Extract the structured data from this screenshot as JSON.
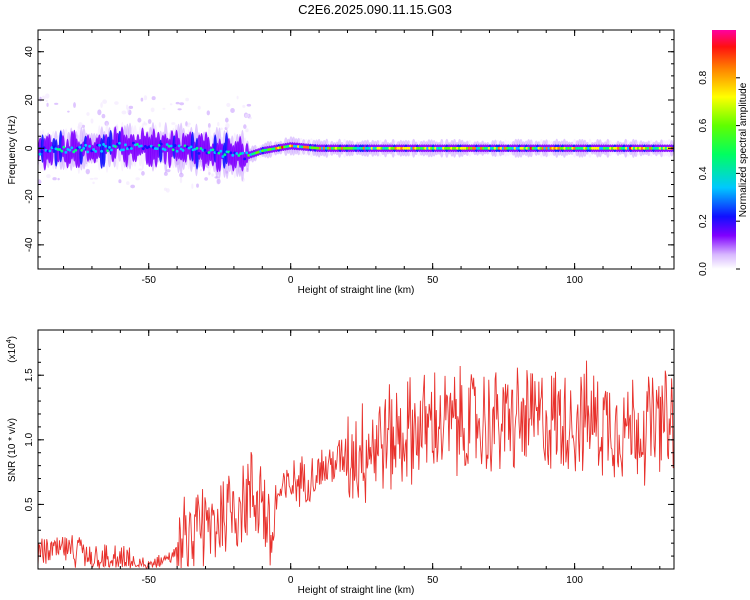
{
  "title": "C2E6.2025.090.11.15.G03",
  "chart_data": [
    {
      "type": "heatmap",
      "xlabel": "Height of straight line (km)",
      "ylabel": "Frequency (Hz)",
      "xlim": [
        -89,
        135
      ],
      "ylim": [
        -50,
        49
      ],
      "xticks": [
        -50,
        0,
        50,
        100
      ],
      "yticks": [
        -40,
        -20,
        0,
        20,
        40
      ],
      "ridge": {
        "x": [
          -89,
          -70,
          -55,
          -40,
          -30,
          -25,
          -20,
          -15,
          -10,
          -5,
          0,
          10,
          30,
          50,
          70,
          90,
          110,
          135
        ],
        "y": [
          -1,
          0,
          1,
          0,
          -1,
          -2,
          -3,
          -3,
          -1,
          0,
          1,
          0,
          0,
          0,
          0,
          0,
          0,
          0
        ]
      },
      "colorbar": {
        "label": "Normalized spectral amplitude",
        "ticks": [
          0.0,
          0.2,
          0.4,
          0.6,
          0.8
        ],
        "range": [
          0,
          1
        ],
        "colormap": "rainbow (purple to red)"
      }
    },
    {
      "type": "line",
      "xlabel": "Height of straight line (km)",
      "ylabel": "SNR (10 * v/v)",
      "scale_label": "(x10",
      "scale_exponent": "4",
      "xlim": [
        -89,
        135
      ],
      "ylim": [
        0,
        1.85
      ],
      "xticks": [
        -50,
        0,
        50,
        100
      ],
      "yticks": [
        0.5,
        1.0,
        1.5
      ],
      "ytick_labels": [
        "0.5",
        "1.0",
        "1.5"
      ],
      "color": "#e8312c",
      "trend": {
        "x": [
          -89,
          -80,
          -70,
          -60,
          -55,
          -50,
          -45,
          -40,
          -35,
          -30,
          -25,
          -20,
          -15,
          -10,
          -7,
          -5,
          0,
          10,
          20,
          30,
          40,
          50,
          60,
          70,
          80,
          90,
          100,
          110,
          120,
          135
        ],
        "y": [
          0.12,
          0.15,
          0.11,
          0.07,
          0.03,
          0.04,
          0.07,
          0.12,
          0.2,
          0.3,
          0.4,
          0.5,
          0.55,
          0.6,
          0.15,
          0.55,
          0.65,
          0.75,
          0.88,
          0.98,
          1.05,
          1.12,
          1.12,
          1.13,
          1.15,
          1.15,
          1.16,
          1.14,
          1.1,
          1.12
        ]
      }
    }
  ]
}
